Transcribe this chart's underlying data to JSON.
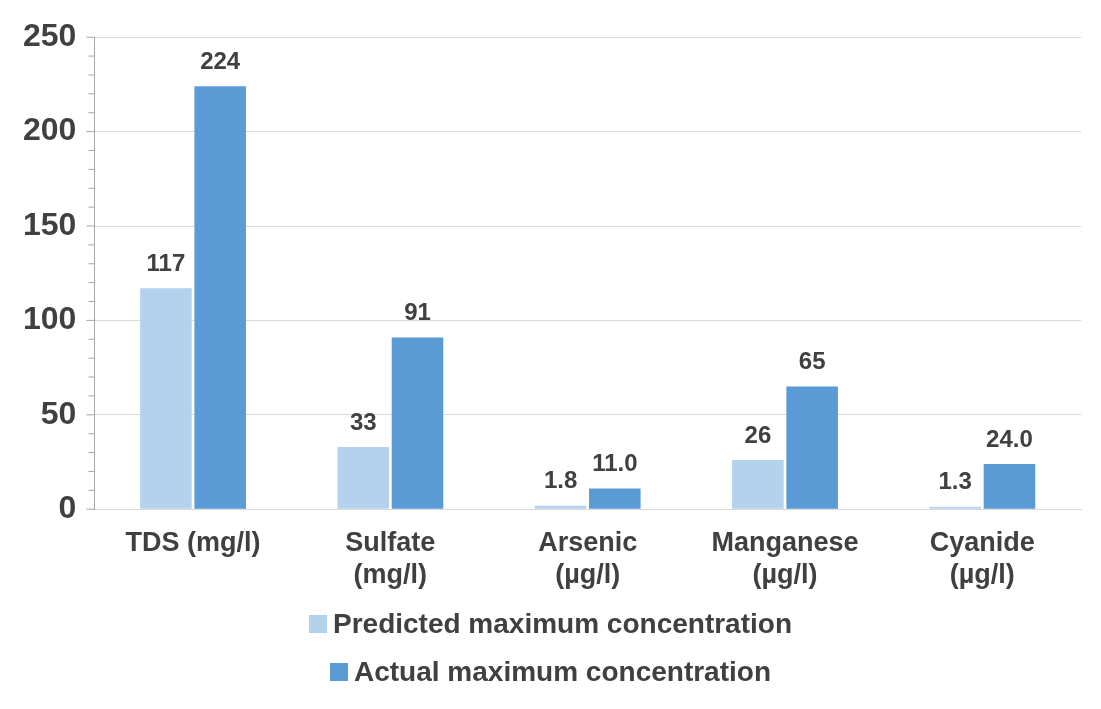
{
  "chart_data": {
    "type": "bar",
    "categories": [
      "TDS (mg/l)",
      "Sulfate (mg/l)",
      "Arsenic (µg/l)",
      "Manganese (µg/l)",
      "Cyanide (µg/l)"
    ],
    "series": [
      {
        "name": "Predicted maximum concentration",
        "color": "#b4d1ee",
        "values": [
          117,
          33,
          1.8,
          26,
          1.3
        ],
        "value_labels": [
          "117",
          "33",
          "1.8",
          "26",
          "1.3"
        ]
      },
      {
        "name": "Actual maximum concentration",
        "color": "#5b9bd5",
        "values": [
          224,
          91,
          11.0,
          65,
          24.0
        ],
        "value_labels": [
          "224",
          "91",
          "11.0",
          "65",
          "24.0"
        ]
      }
    ],
    "ylim": [
      0,
      250
    ],
    "yticks": [
      0,
      {
        "value": 10,
        "label": null
      },
      {
        "value": 20,
        "label": null
      },
      {
        "value": 30,
        "label": null
      },
      {
        "value": 40,
        "label": null
      },
      50,
      {
        "value": 60,
        "label": null
      },
      {
        "value": 70,
        "label": null
      },
      {
        "value": 80,
        "label": null
      },
      {
        "value": 90,
        "label": null
      },
      100,
      {
        "value": 110,
        "label": null
      },
      {
        "value": 120,
        "label": null
      },
      {
        "value": 130,
        "label": null
      },
      {
        "value": 140,
        "label": null
      },
      150,
      {
        "value": 160,
        "label": null
      },
      {
        "value": 170,
        "label": null
      },
      {
        "value": 180,
        "label": null
      },
      {
        "value": 190,
        "label": null
      },
      200,
      {
        "value": 210,
        "label": null
      },
      {
        "value": 220,
        "label": null
      },
      {
        "value": 230,
        "label": null
      },
      {
        "value": 240,
        "label": null
      },
      250
    ],
    "grid": "y",
    "legend": "bottom"
  }
}
